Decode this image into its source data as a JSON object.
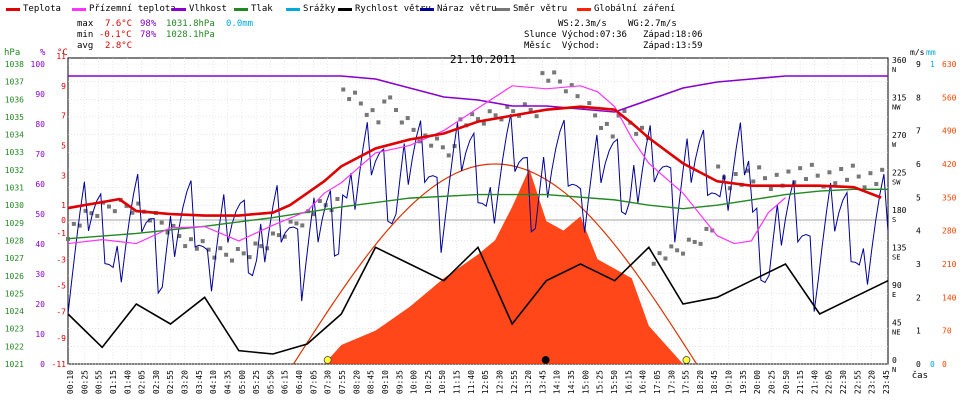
{
  "legend": [
    {
      "label": "Teplota",
      "color": "#e00000"
    },
    {
      "label": "Přízemní teplota",
      "color": "#ff33ff"
    },
    {
      "label": "Vlhkost",
      "color": "#8800cc"
    },
    {
      "label": "Tlak",
      "color": "#228822"
    },
    {
      "label": "Srážky",
      "color": "#00aadd"
    },
    {
      "label": "Rychlost větru",
      "color": "#000000"
    },
    {
      "label": "Náraz větru",
      "color": "#000099"
    },
    {
      "label": "Směr větru",
      "color": "#777777"
    },
    {
      "label": "Globální záření",
      "color": "#ff2200"
    }
  ],
  "stats": {
    "max_label": "max",
    "max_temp": "7.6°C",
    "max_hum": "98%",
    "max_press": "1031.8hPa",
    "rain": "0.0mm",
    "min_label": "min",
    "min_temp": "-0.1°C",
    "min_hum": "78%",
    "min_press": "1028.1hPa",
    "avg_label": "avg",
    "avg_temp": "2.8°C",
    "ws": "WS:2.3m/s",
    "wg": "WG:2.7m/s",
    "sun": "Slunce Východ:07:36",
    "sun_set": "Západ:18:06",
    "moon": "Měsíc  Východ:",
    "moon_set": "Západ:13:59"
  },
  "chart_data": {
    "type": "line",
    "title": "21.10.2011",
    "xlabel": "čas",
    "x_ticks": [
      "00:10",
      "00:25",
      "00:55",
      "01:15",
      "01:40",
      "02:05",
      "02:30",
      "02:55",
      "03:20",
      "03:45",
      "04:10",
      "04:35",
      "05:00",
      "05:25",
      "05:50",
      "06:15",
      "06:40",
      "07:05",
      "07:30",
      "07:55",
      "08:20",
      "08:45",
      "09:10",
      "09:35",
      "10:00",
      "10:25",
      "10:50",
      "11:15",
      "11:40",
      "12:05",
      "12:30",
      "12:55",
      "13:20",
      "13:45",
      "14:10",
      "14:35",
      "15:00",
      "15:25",
      "15:50",
      "16:15",
      "16:40",
      "17:05",
      "17:30",
      "17:55",
      "18:20",
      "18:45",
      "19:10",
      "19:35",
      "20:00",
      "20:25",
      "20:50",
      "21:15",
      "21:40",
      "22:05",
      "22:30",
      "22:55",
      "23:20",
      "23:45"
    ],
    "axes": {
      "hpa": {
        "label": "hPa",
        "range": [
          1021,
          1038
        ],
        "ticks": [
          "1021",
          "1022",
          "1023",
          "1024",
          "1025",
          "1026",
          "1027",
          "1028",
          "1029",
          "1030",
          "1031",
          "1032",
          "1033",
          "1034",
          "1035",
          "1036",
          "1037",
          "1038"
        ]
      },
      "pct": {
        "label": "%",
        "range": [
          0,
          100
        ],
        "ticks": [
          "0",
          "10",
          "20",
          "30",
          "40",
          "50",
          "60",
          "70",
          "80",
          "90",
          "100"
        ]
      },
      "temp": {
        "label": "°C",
        "range": [
          -11,
          11
        ],
        "ticks": [
          "-11",
          "-9",
          "-7",
          "-5",
          "-3",
          "-1",
          "0",
          "1",
          "3",
          "5",
          "7",
          "9",
          "11"
        ]
      },
      "dir": {
        "ticks": [
          "0",
          "45",
          "90",
          "135",
          "180",
          "225",
          "270",
          "315",
          "360"
        ],
        "names": [
          "N",
          "NE",
          "E",
          "SE",
          "S",
          "SW",
          "W",
          "NW",
          "N"
        ]
      },
      "ms": {
        "label": "m/s",
        "range": [
          0,
          9
        ],
        "ticks": [
          "0",
          "1",
          "2",
          "3",
          "4",
          "5",
          "6",
          "7",
          "8",
          "9"
        ]
      },
      "mm": {
        "label": "mm",
        "range": [
          0,
          1
        ],
        "ticks": [
          "0",
          "1"
        ]
      },
      "rad": {
        "label": "W/m²",
        "range": [
          0,
          630
        ],
        "ticks": [
          "0",
          "70",
          "140",
          "210",
          "280",
          "350",
          "420",
          "490",
          "560",
          "630"
        ]
      }
    },
    "series": [
      {
        "name": "Teplota",
        "unit": "°C",
        "x": [
          0,
          0.5,
          1,
          1.5,
          2,
          3,
          4,
          5,
          6,
          6.5,
          7,
          7.5,
          8,
          9,
          10,
          11,
          12,
          13,
          14,
          15,
          16,
          16.5,
          17,
          18,
          19,
          20,
          21,
          22,
          23,
          23.8
        ],
        "values": [
          0.8,
          1.0,
          1.2,
          1.4,
          0.6,
          0.4,
          0.3,
          0.3,
          0.5,
          1.0,
          1.8,
          2.6,
          3.6,
          4.8,
          5.4,
          5.8,
          6.6,
          7.0,
          7.4,
          7.6,
          7.4,
          6.5,
          5.5,
          3.8,
          2.6,
          2.3,
          2.3,
          2.3,
          2.2,
          1.5
        ]
      },
      {
        "name": "Přízemní teplota",
        "unit": "°C",
        "x": [
          0,
          1,
          2,
          3,
          4,
          5,
          6,
          7,
          7.5,
          8,
          8.5,
          9,
          10,
          11,
          12,
          13,
          14,
          15,
          15.5,
          16,
          16.5,
          17,
          18,
          19,
          19.5,
          20,
          20.5,
          21
        ],
        "values": [
          -1.8,
          -1.5,
          -1.8,
          -0.6,
          -0.5,
          -1.6,
          -0.4,
          0.6,
          1.8,
          2.5,
          3.5,
          4.5,
          5.0,
          6.0,
          7.5,
          9.0,
          8.8,
          9.0,
          8.6,
          7.6,
          5.5,
          3.8,
          1.8,
          -1.2,
          -1.8,
          -1.6,
          0.5,
          1.5
        ]
      },
      {
        "name": "Vlhkost",
        "unit": "%",
        "x": [
          0,
          1,
          2,
          4,
          6,
          8,
          9,
          10,
          11,
          12,
          13,
          14,
          15,
          16,
          17,
          18,
          19,
          20,
          21,
          22,
          23,
          24
        ],
        "values": [
          96,
          96,
          96,
          96,
          96,
          96,
          95,
          92,
          89,
          88,
          86,
          86,
          85,
          84,
          88,
          92,
          94,
          95,
          96,
          96,
          96,
          96
        ]
      },
      {
        "name": "Tlak",
        "unit": "hPa",
        "x": [
          0,
          2,
          4,
          6,
          8,
          10,
          12,
          14,
          16,
          17,
          18,
          19,
          20,
          21,
          22,
          23,
          24
        ],
        "values": [
          1028.1,
          1028.4,
          1028.8,
          1029.3,
          1029.9,
          1030.4,
          1030.6,
          1030.6,
          1030.3,
          1030.0,
          1029.8,
          1030.0,
          1030.3,
          1030.6,
          1030.8,
          1030.9,
          1030.9
        ]
      },
      {
        "name": "Globální záření",
        "unit": "W/m²",
        "x": [
          7.5,
          8,
          9,
          10,
          11,
          12,
          12.5,
          13,
          13.5,
          14,
          14.5,
          15,
          15.5,
          16,
          16.5,
          17,
          17.5,
          18
        ],
        "values": [
          0,
          40,
          70,
          120,
          180,
          230,
          260,
          330,
          410,
          300,
          280,
          310,
          220,
          200,
          180,
          80,
          40,
          0
        ]
      },
      {
        "name": "Rychlost větru",
        "unit": "m/s",
        "x": [
          0,
          1,
          2,
          3,
          4,
          5,
          6,
          7,
          8,
          9,
          10,
          11,
          12,
          13,
          14,
          15,
          16,
          17,
          18,
          19,
          20,
          21,
          22,
          23,
          24
        ],
        "values": [
          1.5,
          0.5,
          1.8,
          1.2,
          2.0,
          0.4,
          0.3,
          0.6,
          1.5,
          3.5,
          3.0,
          2.5,
          3.5,
          1.2,
          2.5,
          3.0,
          2.5,
          3.5,
          1.8,
          2.0,
          2.5,
          3.0,
          1.5,
          2.0,
          2.5
        ]
      }
    ]
  }
}
